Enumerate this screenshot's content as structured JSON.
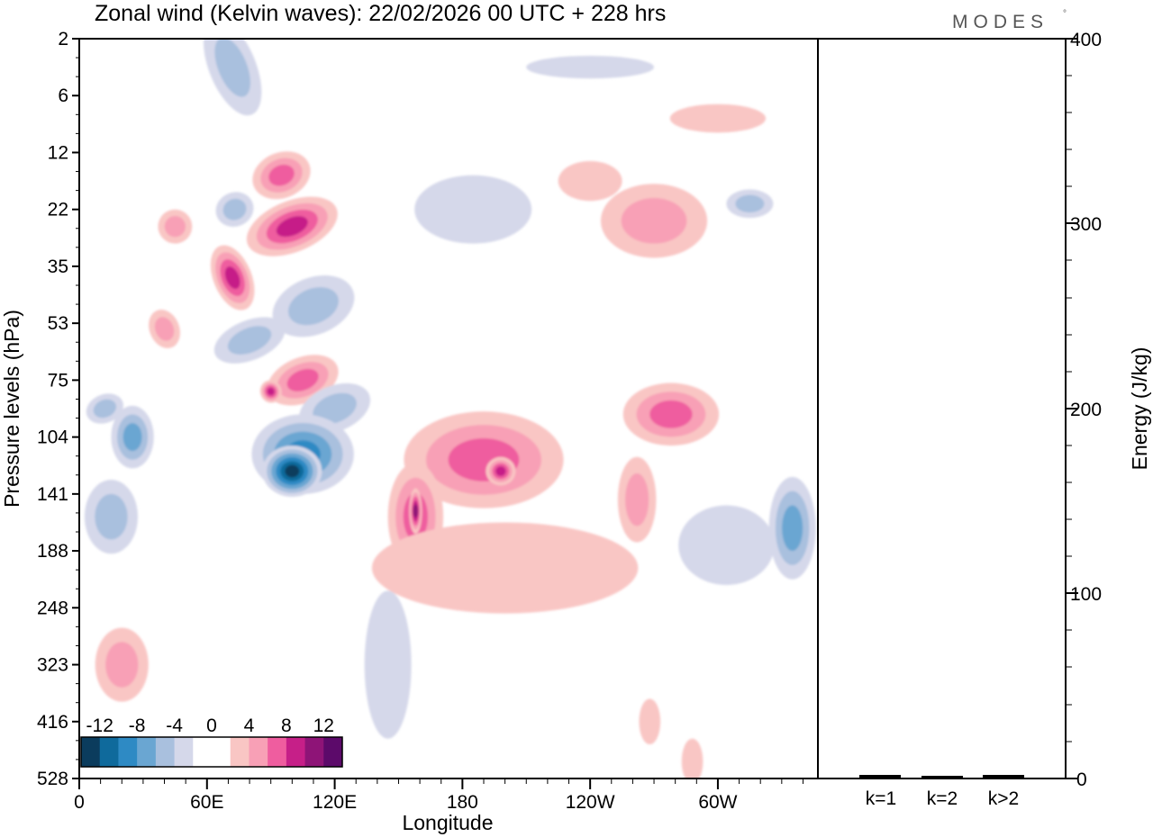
{
  "chart_data": {
    "type": "heatmap",
    "title": "Zonal wind (Kelvin waves):  22/02/2026  00 UTC  + 228 hrs",
    "brand": "MODES",
    "brand_mark": "°",
    "xlabel": "Longitude",
    "ylabel": "Pressure levels (hPa)",
    "x_ticks": [
      "0",
      "60E",
      "120E",
      "180",
      "120W",
      "60W"
    ],
    "y_ticks": [
      "2",
      "6",
      "12",
      "22",
      "35",
      "53",
      "75",
      "104",
      "141",
      "188",
      "248",
      "323",
      "416",
      "528"
    ],
    "xlim": [
      0,
      347
    ],
    "colorbar": {
      "labels": [
        "-12",
        "-8",
        "-4",
        "0",
        "4",
        "8",
        "12"
      ],
      "colors": [
        "#0b3c5d",
        "#0f6a9c",
        "#2e8ac4",
        "#6aa6d2",
        "#a9c0de",
        "#d5d8ea",
        "#ffffff",
        "#ffffff",
        "#f9c6c4",
        "#f8a0b6",
        "#ef5d9f",
        "#c61f88",
        "#8e1477",
        "#5c0a6a"
      ]
    },
    "anomalies": [
      {
        "lon": 72,
        "lev": 0.5,
        "w": 22,
        "h": 1.8,
        "value": -5
      },
      {
        "lon": 95,
        "lev": 2.4,
        "w": 28,
        "h": 0.8,
        "value": 7
      },
      {
        "lon": 45,
        "lev": 3.3,
        "w": 16,
        "h": 0.6,
        "value": 4
      },
      {
        "lon": 73,
        "lev": 3.0,
        "w": 18,
        "h": 0.6,
        "value": -5
      },
      {
        "lon": 100,
        "lev": 3.3,
        "w": 45,
        "h": 0.9,
        "value": 9
      },
      {
        "lon": 72,
        "lev": 4.2,
        "w": 18,
        "h": 1.2,
        "value": 8
      },
      {
        "lon": 40,
        "lev": 5.1,
        "w": 14,
        "h": 0.7,
        "value": 5
      },
      {
        "lon": 110,
        "lev": 4.7,
        "w": 40,
        "h": 1.0,
        "value": -4
      },
      {
        "lon": 80,
        "lev": 5.3,
        "w": 35,
        "h": 0.7,
        "value": -4
      },
      {
        "lon": 105,
        "lev": 6.0,
        "w": 35,
        "h": 0.8,
        "value": 6
      },
      {
        "lon": 90,
        "lev": 6.2,
        "w": 10,
        "h": 0.4,
        "value": 9
      },
      {
        "lon": 12,
        "lev": 6.5,
        "w": 18,
        "h": 0.5,
        "value": -5
      },
      {
        "lon": 25,
        "lev": 7.0,
        "w": 20,
        "h": 1.1,
        "value": -6
      },
      {
        "lon": 120,
        "lev": 6.5,
        "w": 35,
        "h": 0.8,
        "value": -5
      },
      {
        "lon": 105,
        "lev": 7.3,
        "w": 48,
        "h": 1.4,
        "value": -9
      },
      {
        "lon": 100,
        "lev": 7.6,
        "w": 28,
        "h": 0.9,
        "value": -13
      },
      {
        "lon": 15,
        "lev": 8.4,
        "w": 25,
        "h": 1.3,
        "value": -5
      },
      {
        "lon": 190,
        "lev": 7.4,
        "w": 75,
        "h": 1.7,
        "value": 6
      },
      {
        "lon": 198,
        "lev": 7.6,
        "w": 14,
        "h": 0.5,
        "value": 9
      },
      {
        "lon": 158,
        "lev": 8.4,
        "w": 26,
        "h": 1.9,
        "value": 6
      },
      {
        "lon": 158,
        "lev": 8.3,
        "w": 6,
        "h": 0.8,
        "value": 10
      },
      {
        "lon": 200,
        "lev": 9.3,
        "w": 125,
        "h": 1.6,
        "value": 3
      },
      {
        "lon": 278,
        "lev": 6.6,
        "w": 45,
        "h": 1.1,
        "value": 6
      },
      {
        "lon": 262,
        "lev": 8.1,
        "w": 18,
        "h": 1.5,
        "value": 4
      },
      {
        "lon": 335,
        "lev": 8.6,
        "w": 22,
        "h": 1.8,
        "value": -7
      },
      {
        "lon": 304,
        "lev": 8.9,
        "w": 45,
        "h": 1.4,
        "value": -3
      },
      {
        "lon": 270,
        "lev": 3.2,
        "w": 50,
        "h": 1.3,
        "value": 4
      },
      {
        "lon": 315,
        "lev": 2.9,
        "w": 22,
        "h": 0.5,
        "value": -5
      },
      {
        "lon": 185,
        "lev": 3.0,
        "w": 55,
        "h": 1.2,
        "value": -3
      },
      {
        "lon": 240,
        "lev": 2.5,
        "w": 30,
        "h": 0.7,
        "value": 3
      },
      {
        "lon": 300,
        "lev": 1.4,
        "w": 45,
        "h": 0.5,
        "value": 3
      },
      {
        "lon": 240,
        "lev": 0.5,
        "w": 60,
        "h": 0.4,
        "value": -3
      },
      {
        "lon": 20,
        "lev": 11.0,
        "w": 25,
        "h": 1.3,
        "value": 4
      },
      {
        "lon": 145,
        "lev": 11.0,
        "w": 22,
        "h": 2.6,
        "value": -3
      },
      {
        "lon": 268,
        "lev": 12.0,
        "w": 10,
        "h": 0.8,
        "value": 3
      },
      {
        "lon": 288,
        "lev": 12.7,
        "w": 10,
        "h": 0.8,
        "value": 3
      }
    ]
  }
}
